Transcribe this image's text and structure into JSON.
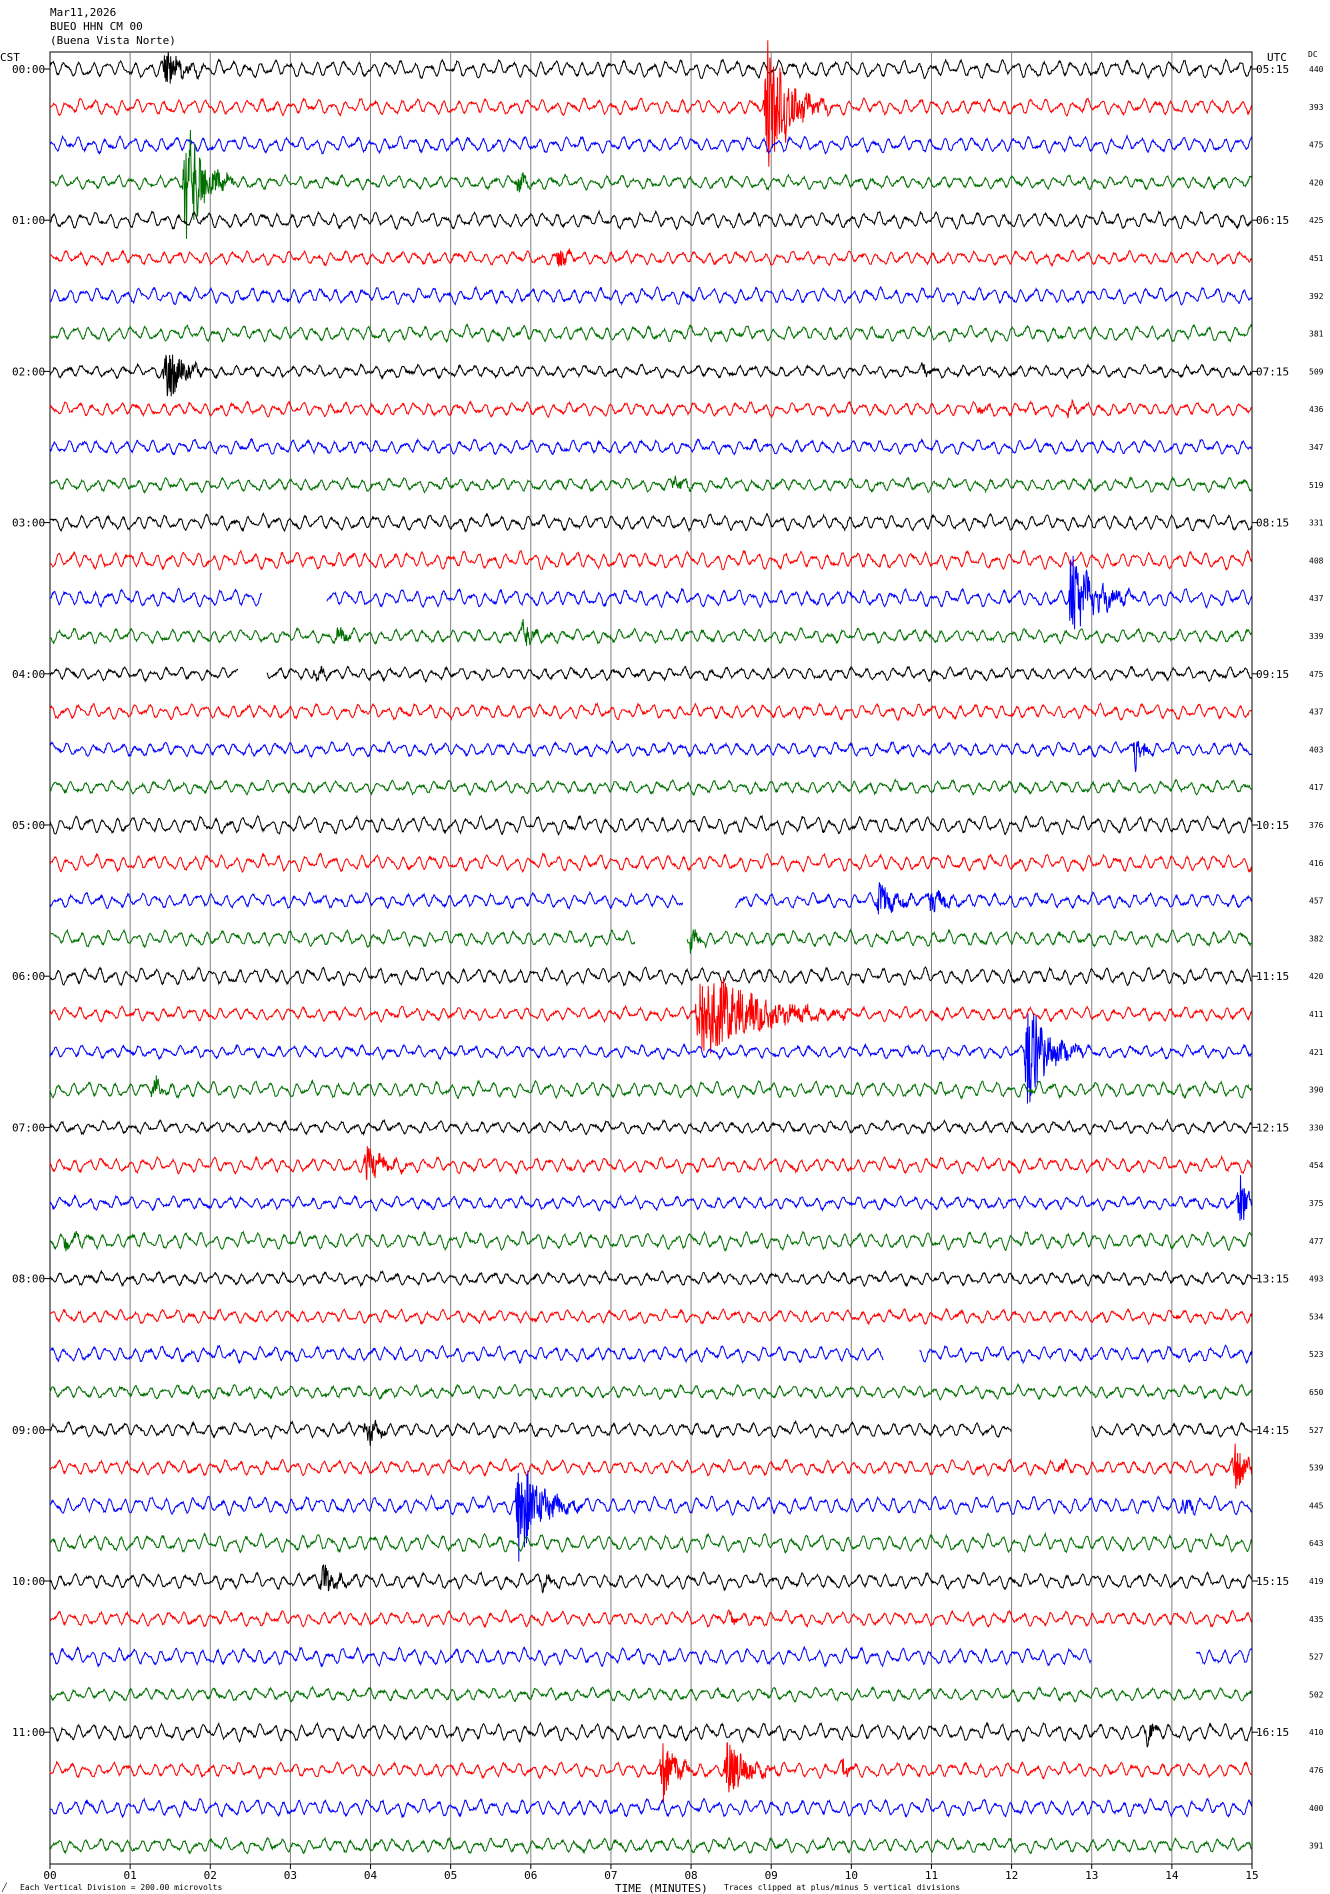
{
  "header": {
    "date": "Mar11,2026",
    "station": "BUEO HHN CM 00",
    "location": "(Buena Vista Norte)"
  },
  "left_axis_label": "CST",
  "right_axis_label": "UTC",
  "dc_label": "DC",
  "colors": [
    "#000000",
    "#ff0000",
    "#0000ff",
    "#007000"
  ],
  "x_axis": {
    "label": "TIME (MINUTES)",
    "ticks": [
      "00",
      "01",
      "02",
      "03",
      "04",
      "05",
      "06",
      "07",
      "08",
      "09",
      "10",
      "11",
      "12",
      "13",
      "14",
      "15"
    ]
  },
  "footer": {
    "scale_note": "Each Vertical Division =  200.00 microvolts",
    "clip_note": "Traces clipped at plus/minus 5 vertical divisions",
    "logo_mark": "╱"
  },
  "chart_data": {
    "type": "line",
    "title": "",
    "xlabel": "TIME (MINUTES)",
    "ylabel": "",
    "xlim": [
      0,
      15
    ],
    "trace_count": 48,
    "minutes_per_trace": 15,
    "left_hour_labels": [
      "00:00",
      "01:00",
      "02:00",
      "03:00",
      "04:00",
      "05:00",
      "06:00",
      "07:00",
      "08:00",
      "09:00",
      "10:00",
      "11:00"
    ],
    "right_hour_labels": [
      "05:15",
      "06:15",
      "07:15",
      "08:15",
      "09:15",
      "10:15",
      "11:15",
      "12:15",
      "13:15",
      "14:15",
      "15:15",
      "16:15"
    ],
    "dc_values": [
      "440",
      "393",
      "475",
      "420",
      "425",
      "451",
      "392",
      "381",
      "509",
      "436",
      "347",
      "519",
      "331",
      "408",
      "437",
      "339",
      "475",
      "437",
      "403",
      "417",
      "376",
      "416",
      "457",
      "382",
      "420",
      "411",
      "421",
      "390",
      "330",
      "454",
      "375",
      "477",
      "493",
      "534",
      "523",
      "650",
      "527",
      "539",
      "445",
      "643",
      "419",
      "435",
      "527",
      "502",
      "410",
      "476",
      "400",
      "391"
    ],
    "events": [
      {
        "trace": 0,
        "t": 1.45,
        "amp": 22,
        "dur": 0.5
      },
      {
        "trace": 1,
        "t": 8.95,
        "amp": 70,
        "dur": 0.8
      },
      {
        "trace": 3,
        "t": 1.7,
        "amp": 75,
        "dur": 0.6
      },
      {
        "trace": 3,
        "t": 5.85,
        "amp": 10,
        "dur": 0.3
      },
      {
        "trace": 5,
        "t": 6.35,
        "amp": 12,
        "dur": 0.3
      },
      {
        "trace": 8,
        "t": 1.45,
        "amp": 38,
        "dur": 0.5
      },
      {
        "trace": 8,
        "t": 10.9,
        "amp": 6,
        "dur": 0.4
      },
      {
        "trace": 9,
        "t": 11.6,
        "amp": 6,
        "dur": 0.4
      },
      {
        "trace": 9,
        "t": 12.7,
        "amp": 6,
        "dur": 0.4
      },
      {
        "trace": 11,
        "t": 7.8,
        "amp": 10,
        "dur": 0.3
      },
      {
        "trace": 14,
        "t": 12.75,
        "amp": 48,
        "dur": 0.8
      },
      {
        "trace": 15,
        "t": 3.6,
        "amp": 10,
        "dur": 0.3
      },
      {
        "trace": 15,
        "t": 5.9,
        "amp": 16,
        "dur": 0.4
      },
      {
        "trace": 16,
        "t": 3.3,
        "amp": 8,
        "dur": 0.3
      },
      {
        "trace": 18,
        "t": 13.55,
        "amp": 18,
        "dur": 0.3
      },
      {
        "trace": 22,
        "t": 10.35,
        "amp": 18,
        "dur": 0.6
      },
      {
        "trace": 22,
        "t": 11.0,
        "amp": 14,
        "dur": 0.5
      },
      {
        "trace": 23,
        "t": 8.0,
        "amp": 10,
        "dur": 0.4
      },
      {
        "trace": 25,
        "t": 8.1,
        "amp": 52,
        "dur": 1.9
      },
      {
        "trace": 26,
        "t": 12.2,
        "amp": 62,
        "dur": 0.7
      },
      {
        "trace": 27,
        "t": 1.3,
        "amp": 10,
        "dur": 0.3
      },
      {
        "trace": 29,
        "t": 3.95,
        "amp": 18,
        "dur": 0.6
      },
      {
        "trace": 30,
        "t": 14.85,
        "amp": 30,
        "dur": 0.3
      },
      {
        "trace": 31,
        "t": 0.2,
        "amp": 8,
        "dur": 0.4
      },
      {
        "trace": 36,
        "t": 3.95,
        "amp": 16,
        "dur": 0.4
      },
      {
        "trace": 37,
        "t": 14.8,
        "amp": 32,
        "dur": 0.3
      },
      {
        "trace": 37,
        "t": 12.6,
        "amp": 6,
        "dur": 0.3
      },
      {
        "trace": 38,
        "t": 5.85,
        "amp": 55,
        "dur": 0.8
      },
      {
        "trace": 38,
        "t": 14.15,
        "amp": 10,
        "dur": 0.3
      },
      {
        "trace": 40,
        "t": 3.4,
        "amp": 16,
        "dur": 0.5
      },
      {
        "trace": 40,
        "t": 6.15,
        "amp": 10,
        "dur": 0.3
      },
      {
        "trace": 41,
        "t": 8.5,
        "amp": 6,
        "dur": 0.3
      },
      {
        "trace": 44,
        "t": 13.7,
        "amp": 12,
        "dur": 0.3
      },
      {
        "trace": 45,
        "t": 7.65,
        "amp": 30,
        "dur": 0.5
      },
      {
        "trace": 45,
        "t": 8.45,
        "amp": 32,
        "dur": 0.7
      },
      {
        "trace": 45,
        "t": 9.9,
        "amp": 8,
        "dur": 0.3
      }
    ],
    "gaps": [
      {
        "trace": 14,
        "t0": 2.65,
        "t1": 3.45
      },
      {
        "trace": 16,
        "t0": 2.35,
        "t1": 2.7
      },
      {
        "trace": 22,
        "t0": 7.9,
        "t1": 8.55
      },
      {
        "trace": 23,
        "t0": 7.3,
        "t1": 7.95
      },
      {
        "trace": 34,
        "t0": 10.4,
        "t1": 10.85
      },
      {
        "trace": 36,
        "t0": 12.0,
        "t1": 13.0
      },
      {
        "trace": 42,
        "t0": 13.0,
        "t1": 14.3
      }
    ]
  }
}
